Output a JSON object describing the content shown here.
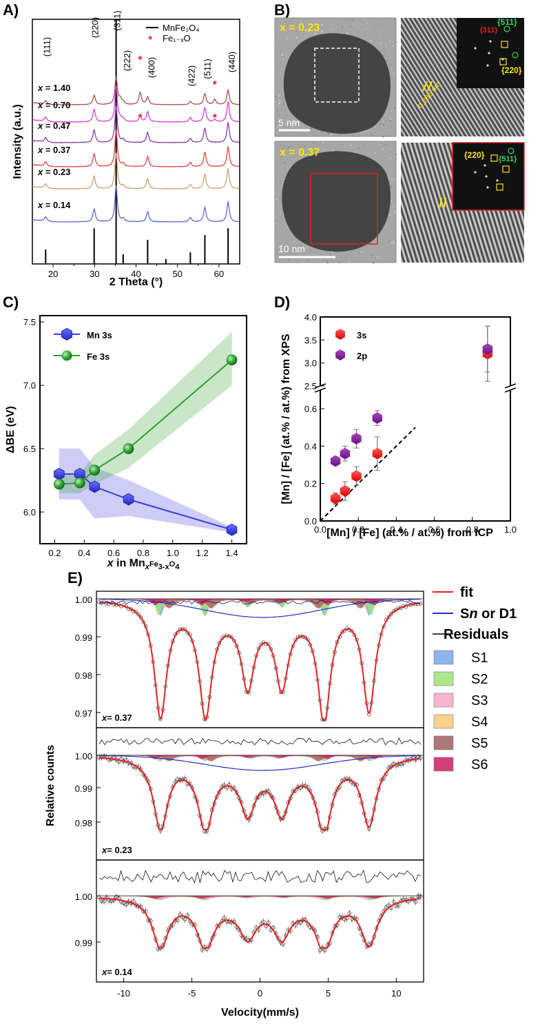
{
  "chart_data": [
    {
      "panel": "A)",
      "type": "line",
      "title": "",
      "xlabel": "2 Theta (°)",
      "ylabel": "Intensity (a.u.)",
      "xlim": [
        15,
        65
      ],
      "xticks": [
        "20",
        "30",
        "40",
        "50",
        "60"
      ],
      "series": [
        {
          "name": "x = 1.40",
          "color": "#a0524a",
          "reflections": "spinel + Fe1-xO"
        },
        {
          "name": "x = 0.70",
          "color": "#d63fd6",
          "reflections": "spinel + Fe1-xO"
        },
        {
          "name": "x = 0.47",
          "color": "#8a3ca8",
          "reflections": "spinel"
        },
        {
          "name": "x = 0.37",
          "color": "#e84040",
          "reflections": "spinel"
        },
        {
          "name": "x = 0.23",
          "color": "#c9a36b",
          "reflections": "spinel"
        },
        {
          "name": "x = 0.14",
          "color": "#5b6bd6",
          "reflections": "spinel"
        }
      ],
      "peak_labels": [
        {
          "label": "(111)",
          "two_theta": 18.2
        },
        {
          "label": "(220)",
          "two_theta": 29.9
        },
        {
          "label": "(311)",
          "two_theta": 35.2
        },
        {
          "label": "(222)",
          "two_theta": 36.9
        },
        {
          "label": "(400)",
          "two_theta": 42.8
        },
        {
          "label": "(422)",
          "two_theta": 53.1
        },
        {
          "label": "(511)",
          "two_theta": 56.6
        },
        {
          "label": "(440)",
          "two_theta": 62.2
        }
      ],
      "reference_lines": [
        {
          "two_theta": 18.2,
          "rel": 0.15
        },
        {
          "two_theta": 29.9,
          "rel": 0.37
        },
        {
          "two_theta": 35.2,
          "rel": 1.0
        },
        {
          "two_theta": 36.9,
          "rel": 0.1
        },
        {
          "two_theta": 42.8,
          "rel": 0.25
        },
        {
          "two_theta": 47.2,
          "rel": 0.05
        },
        {
          "two_theta": 53.1,
          "rel": 0.12
        },
        {
          "two_theta": 56.6,
          "rel": 0.3
        },
        {
          "two_theta": 62.2,
          "rel": 0.37
        }
      ],
      "legend": [
        {
          "label": "MnFe₂O₄",
          "marker": "line"
        },
        {
          "label": "Fe₁₋ₓO",
          "marker": "*"
        }
      ],
      "star_marker": "*"
    },
    {
      "panel": "B)",
      "type": "image",
      "labels": [
        "x = 0.23",
        "x = 0.37",
        "5 nm",
        "10 nm",
        "0.286 nm",
        "{511}",
        "(311)",
        "{220}",
        "{220}",
        "{511}"
      ]
    },
    {
      "panel": "C)",
      "type": "line",
      "xlabel_parts": [
        "x",
        " in Mn",
        "x",
        "Fe",
        "3-x",
        "O",
        "4"
      ],
      "ylabel": "ΔBE (eV)",
      "xlim": [
        0.1,
        1.5
      ],
      "ylim": [
        5.75,
        7.55
      ],
      "xticks": [
        0.2,
        0.4,
        0.6,
        0.8,
        1.0,
        1.2,
        1.4
      ],
      "yticks": [
        6.0,
        6.5,
        7.0,
        7.5
      ],
      "series": [
        {
          "name": "Mn 3s",
          "color": "#3b3be0",
          "marker": "hexagon",
          "x": [
            0.23,
            0.37,
            0.47,
            0.7,
            1.4
          ],
          "y": [
            6.3,
            6.3,
            6.2,
            6.1,
            5.86
          ],
          "band_low": [
            6.1,
            6.1,
            5.95,
            5.97,
            5.84
          ],
          "band_high": [
            6.5,
            6.5,
            6.35,
            6.25,
            5.88
          ]
        },
        {
          "name": "Fe 3s",
          "color": "#2e9e2e",
          "marker": "sphere",
          "x": [
            0.23,
            0.37,
            0.47,
            0.7,
            1.4
          ],
          "y": [
            6.22,
            6.23,
            6.33,
            6.5,
            7.2
          ],
          "band_low": [
            6.15,
            6.15,
            6.22,
            6.35,
            7.0
          ],
          "band_high": [
            6.3,
            6.3,
            6.45,
            6.65,
            7.42
          ]
        }
      ]
    },
    {
      "panel": "D)",
      "type": "scatter",
      "xlabel": "[Mn] / [Fe] (at.% / at.%) from ICP",
      "ylabel": "[Mn] / [Fe] (at.% / at.%) from XPS",
      "xlim": [
        0.0,
        1.0
      ],
      "xticks": [
        "0.0",
        "0.2",
        "0.4",
        "0.6",
        "0.8",
        "1.0"
      ],
      "yticks_lower": [
        "0.0",
        "0.2",
        "0.4",
        "0.6"
      ],
      "yticks_upper": [
        "2.5",
        "3.0",
        "3.5",
        "4.0"
      ],
      "ylim_lower": [
        0.0,
        0.7
      ],
      "ylim_upper": [
        2.5,
        4.0
      ],
      "series": [
        {
          "name": "3s",
          "color": "#ff2222",
          "x": [
            0.08,
            0.13,
            0.19,
            0.3,
            0.88
          ],
          "y": [
            0.12,
            0.16,
            0.24,
            0.36,
            3.2
          ],
          "err": [
            0.03,
            0.05,
            0.05,
            0.09,
            0.6
          ]
        },
        {
          "name": "2p",
          "color": "#8a1a9e",
          "x": [
            0.08,
            0.13,
            0.19,
            0.3,
            0.88
          ],
          "y": [
            0.32,
            0.36,
            0.44,
            0.55,
            3.3
          ],
          "err": [
            0.02,
            0.04,
            0.05,
            0.04,
            0.5
          ]
        }
      ],
      "reference_line": {
        "style": "dashed",
        "from": [
          0.0,
          0.0
        ],
        "to": [
          0.5,
          0.5
        ]
      }
    },
    {
      "panel": "E)",
      "type": "line",
      "xlabel": "Velocity(mm/s)",
      "ylabel": "Relative counts",
      "xlim": [
        -12,
        12
      ],
      "xticks": [
        "-10",
        "-5",
        "0",
        "5",
        "10"
      ],
      "subplots": [
        {
          "label": "x= 0.37",
          "yticks": [
            "0.97",
            "0.98",
            "0.99",
            "1.00"
          ],
          "ylim": [
            0.965,
            1.006
          ]
        },
        {
          "label": "x= 0.23",
          "yticks": [
            "0.98",
            "0.99",
            "1.00"
          ],
          "ylim": [
            0.975,
            1.006
          ]
        },
        {
          "label": "x= 0.14",
          "yticks": [
            "0.99",
            "1.00"
          ],
          "ylim": [
            0.986,
            1.004
          ]
        }
      ],
      "sextet_positions": [
        -7.3,
        -4.0,
        -0.9,
        1.6,
        4.7,
        8.0
      ],
      "legend": [
        {
          "label": "fit",
          "color": "#e82020",
          "marker": "line"
        },
        {
          "label_parts": [
            "S",
            "n",
            " or D1"
          ],
          "color": "#2030c0",
          "marker": "line"
        },
        {
          "label": "Residuals",
          "color": "#000000",
          "marker": "line"
        },
        {
          "label": "S1",
          "color": "#7aa7e8",
          "marker": "box"
        },
        {
          "label": "S2",
          "color": "#9fe27a",
          "marker": "box"
        },
        {
          "label": "S3",
          "color": "#f5a8c8",
          "marker": "box"
        },
        {
          "label": "S4",
          "color": "#f8c878",
          "marker": "box"
        },
        {
          "label": "S5",
          "color": "#a06060",
          "marker": "box"
        },
        {
          "label": "S6",
          "color": "#cc1f64",
          "marker": "box"
        }
      ]
    }
  ],
  "panels": {
    "a": "A)",
    "b": "B)",
    "c": "C)",
    "d": "D)",
    "e": "E)"
  }
}
